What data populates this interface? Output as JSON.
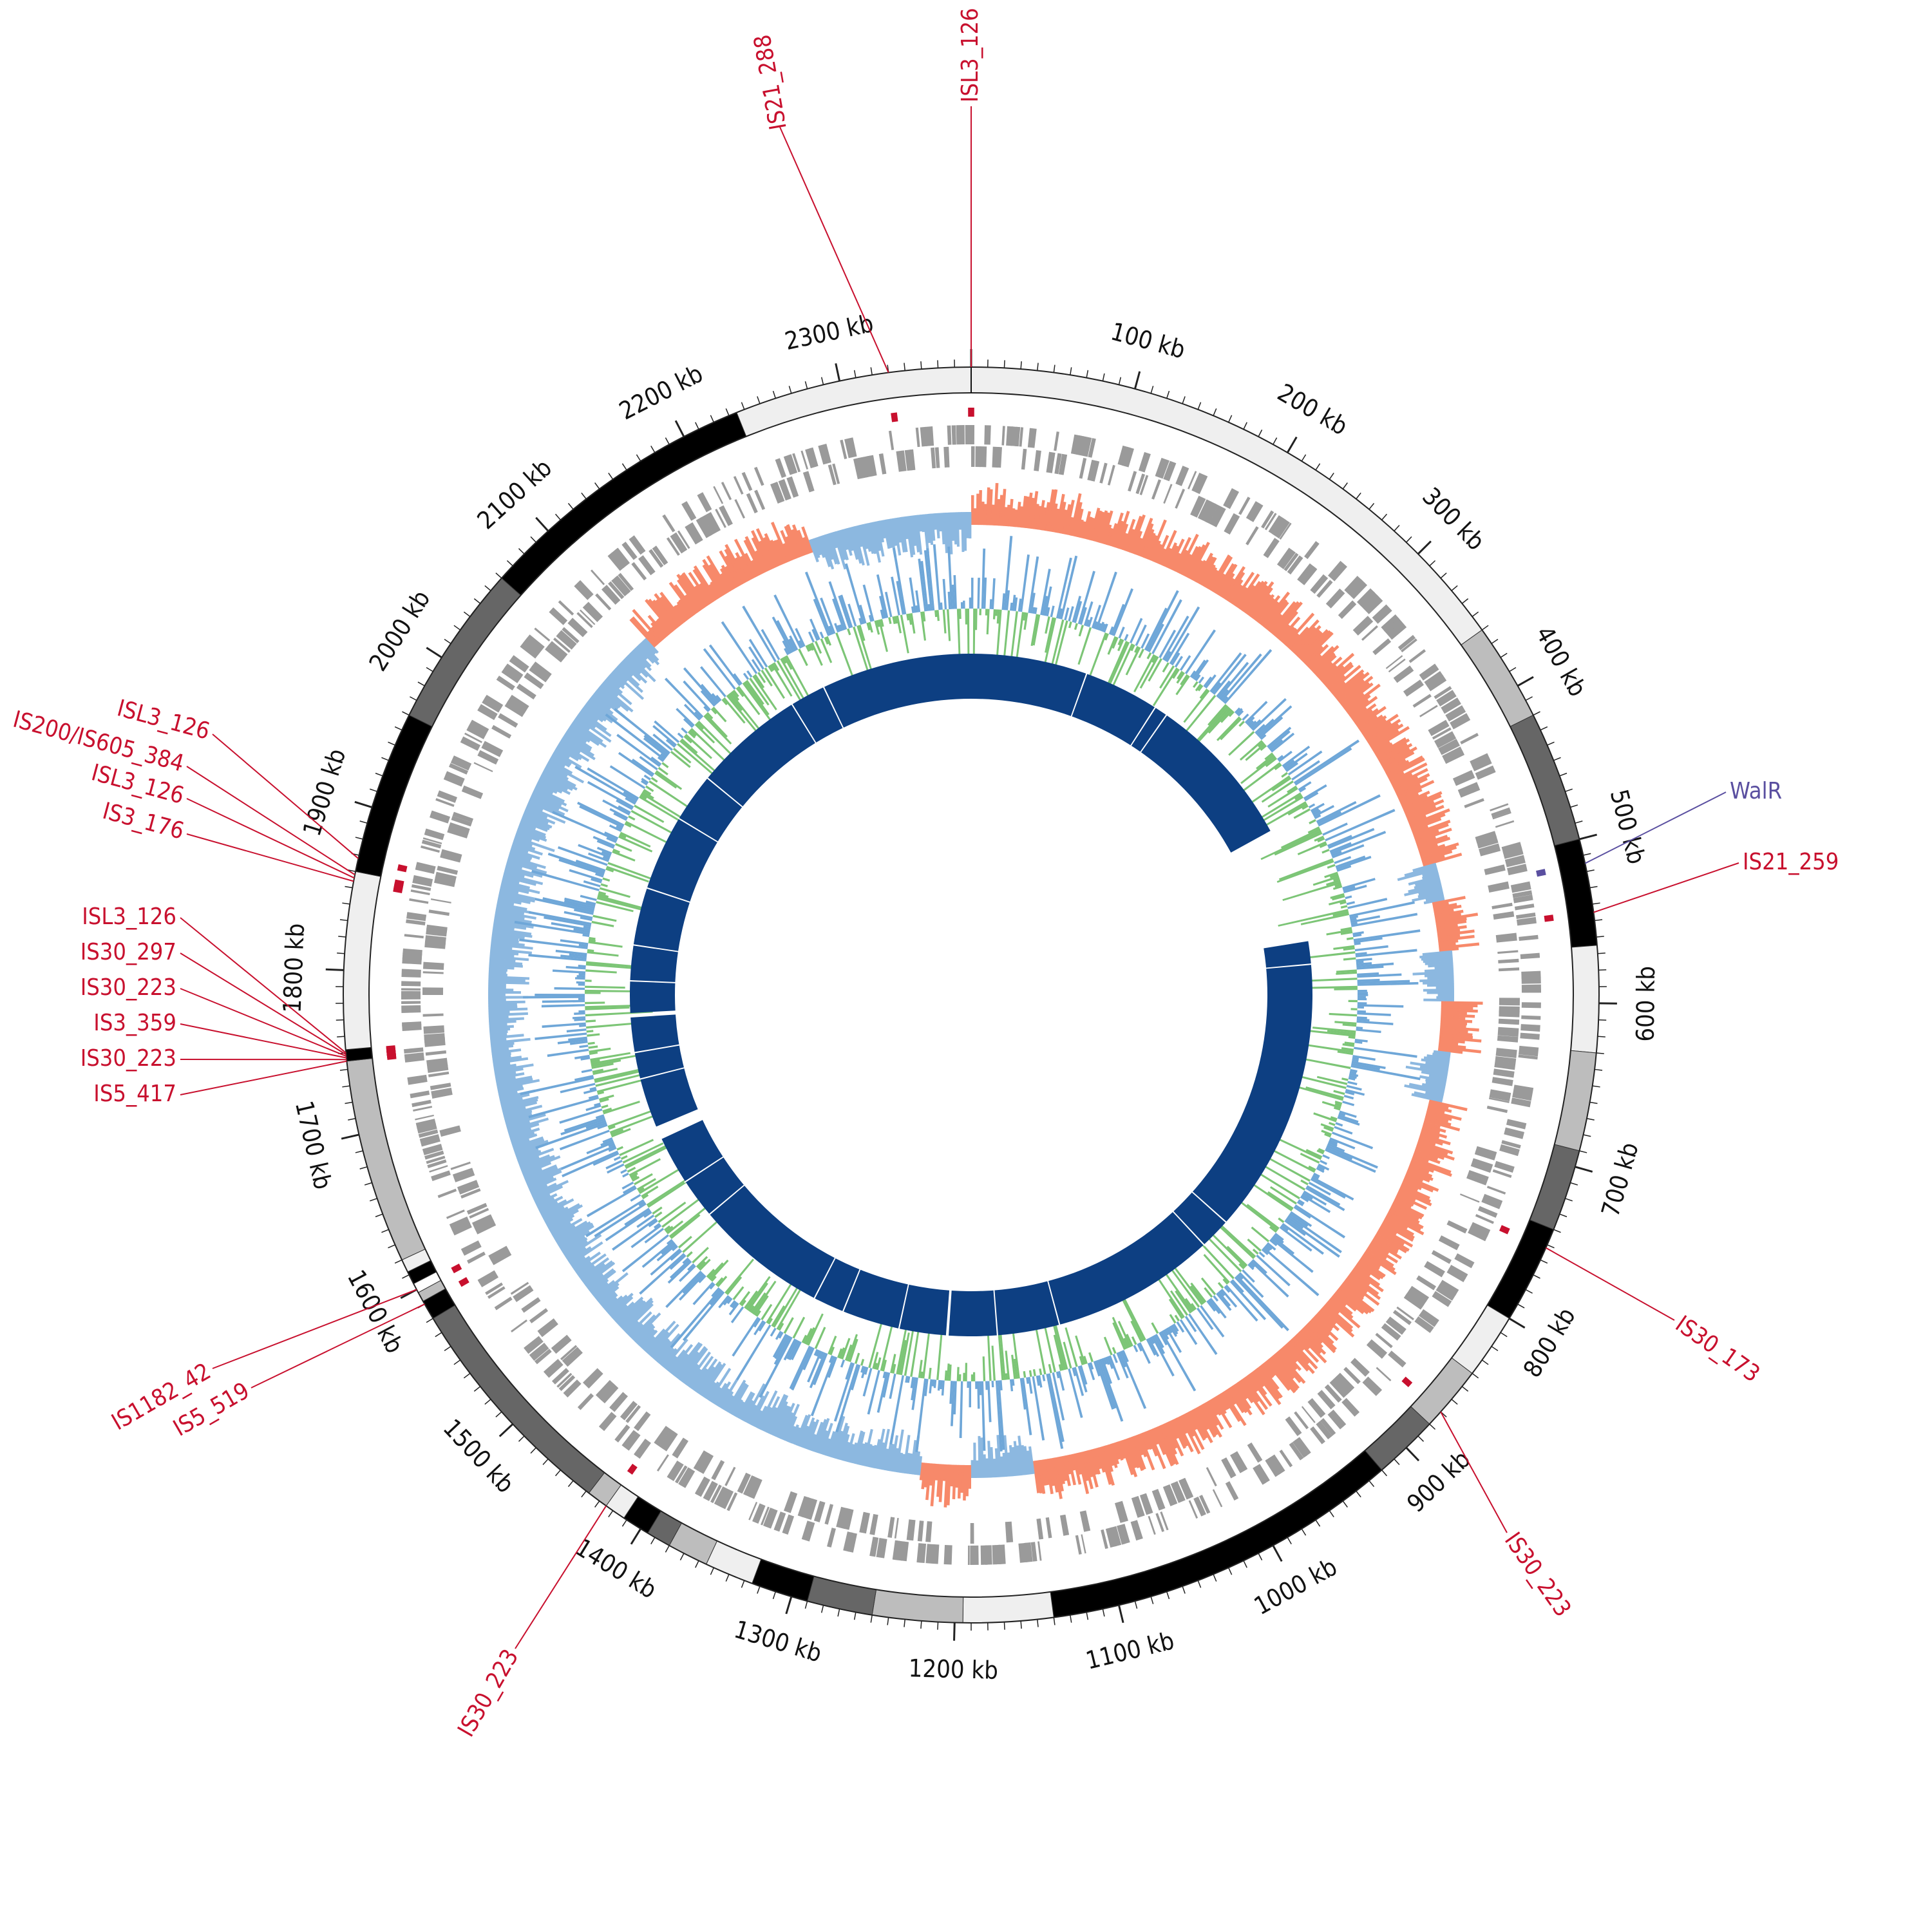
{
  "genome": {
    "length_kb": 2380,
    "tick_labels": [
      "100 kb",
      "200 kb",
      "300 kb",
      "400 kb",
      "500 kb",
      "600 kb",
      "700 kb",
      "800 kb",
      "900 kb",
      "1000 kb",
      "1100 kb",
      "1200 kb",
      "1300 kb",
      "1400 kb",
      "1500 kb",
      "1600 kb",
      "1700 kb",
      "1800 kb",
      "1900 kb",
      "2000 kb",
      "2100 kb",
      "2200 kb",
      "2300 kb"
    ],
    "tick_values_kb": [
      100,
      200,
      300,
      400,
      500,
      600,
      700,
      800,
      900,
      1000,
      1100,
      1200,
      1300,
      1400,
      1500,
      1600,
      1700,
      1800,
      1900,
      2000,
      2100,
      2200,
      2300
    ]
  },
  "annotations": [
    {
      "label": "ISL3_126",
      "kb": 0,
      "color": "#c8102e"
    },
    {
      "label": "IS21_288",
      "kb": 2330,
      "color": "#c8102e"
    },
    {
      "label": "WalR",
      "kb": 515,
      "color": "#5a4fa0"
    },
    {
      "label": "IS21_259",
      "kb": 545,
      "color": "#c8102e"
    },
    {
      "label": "IS30_173",
      "kb": 752,
      "color": "#c8102e"
    },
    {
      "label": "IS30_223",
      "kb": 870,
      "color": "#c8102e"
    },
    {
      "label": "IS30_223",
      "kb": 1425,
      "color": "#c8102e"
    },
    {
      "label": "IS1182_42",
      "kb": 1600,
      "color": "#c8102e"
    },
    {
      "label": "IS5_519",
      "kb": 1590,
      "color": "#c8102e"
    },
    {
      "label": "ISL3_126",
      "kb": 1868,
      "color": "#c8102e"
    },
    {
      "label": "IS200/IS605_384",
      "kb": 1858,
      "color": "#c8102e"
    },
    {
      "label": "ISL3_126",
      "kb": 1856,
      "color": "#c8102e"
    },
    {
      "label": "IS3_176",
      "kb": 1854,
      "color": "#c8102e"
    },
    {
      "label": "ISL3_126",
      "kb": 1750,
      "color": "#c8102e"
    },
    {
      "label": "IS30_297",
      "kb": 1749,
      "color": "#c8102e"
    },
    {
      "label": "IS30_223",
      "kb": 1748,
      "color": "#c8102e"
    },
    {
      "label": "IS3_359",
      "kb": 1747,
      "color": "#c8102e"
    },
    {
      "label": "IS30_223",
      "kb": 1746,
      "color": "#c8102e"
    },
    {
      "label": "IS5_417",
      "kb": 1745,
      "color": "#c8102e"
    }
  ],
  "tracks": {
    "outer_blocks_kb": [
      {
        "start": 0,
        "end": 360,
        "shade": "#efefef"
      },
      {
        "start": 360,
        "end": 420,
        "shade": "#bdbdbd"
      },
      {
        "start": 420,
        "end": 500,
        "shade": "#666666"
      },
      {
        "start": 500,
        "end": 565,
        "shade": "#000000"
      },
      {
        "start": 565,
        "end": 630,
        "shade": "#efefef"
      },
      {
        "start": 630,
        "end": 690,
        "shade": "#bdbdbd"
      },
      {
        "start": 690,
        "end": 740,
        "shade": "#666666"
      },
      {
        "start": 740,
        "end": 800,
        "shade": "#000000"
      },
      {
        "start": 800,
        "end": 840,
        "shade": "#efefef"
      },
      {
        "start": 840,
        "end": 880,
        "shade": "#bdbdbd"
      },
      {
        "start": 880,
        "end": 920,
        "shade": "#666666"
      },
      {
        "start": 920,
        "end": 1140,
        "shade": "#000000"
      },
      {
        "start": 1140,
        "end": 1195,
        "shade": "#efefef"
      },
      {
        "start": 1195,
        "end": 1250,
        "shade": "#bdbdbd"
      },
      {
        "start": 1250,
        "end": 1290,
        "shade": "#666666"
      },
      {
        "start": 1290,
        "end": 1325,
        "shade": "#000000"
      },
      {
        "start": 1325,
        "end": 1355,
        "shade": "#efefef"
      },
      {
        "start": 1355,
        "end": 1380,
        "shade": "#bdbdbd"
      },
      {
        "start": 1380,
        "end": 1395,
        "shade": "#666666"
      },
      {
        "start": 1395,
        "end": 1412,
        "shade": "#000000"
      },
      {
        "start": 1412,
        "end": 1425,
        "shade": "#efefef"
      },
      {
        "start": 1425,
        "end": 1438,
        "shade": "#bdbdbd"
      },
      {
        "start": 1438,
        "end": 1580,
        "shade": "#666666"
      },
      {
        "start": 1580,
        "end": 1592,
        "shade": "#000000"
      },
      {
        "start": 1592,
        "end": 1598,
        "shade": "#bdbdbd"
      },
      {
        "start": 1598,
        "end": 1604,
        "shade": "#ffffff"
      },
      {
        "start": 1604,
        "end": 1612,
        "shade": "#000000"
      },
      {
        "start": 1612,
        "end": 1620,
        "shade": "#efefef"
      },
      {
        "start": 1620,
        "end": 1745,
        "shade": "#bdbdbd"
      },
      {
        "start": 1745,
        "end": 1752,
        "shade": "#000000"
      },
      {
        "start": 1752,
        "end": 1860,
        "shade": "#efefef"
      },
      {
        "start": 1860,
        "end": 1960,
        "shade": "#000000"
      },
      {
        "start": 1960,
        "end": 2060,
        "shade": "#666666"
      },
      {
        "start": 2060,
        "end": 2235,
        "shade": "#000000"
      },
      {
        "start": 2235,
        "end": 2380,
        "shade": "#efefef"
      }
    ],
    "gc_skew_segments_kb": [
      {
        "start": 0,
        "end": 490,
        "sign": "negative"
      },
      {
        "start": 490,
        "end": 700,
        "sign": "mixed"
      },
      {
        "start": 700,
        "end": 1140,
        "sign": "negative"
      },
      {
        "start": 1140,
        "end": 1190,
        "sign": "positive"
      },
      {
        "start": 1190,
        "end": 1230,
        "sign": "negative"
      },
      {
        "start": 1230,
        "end": 1530,
        "sign": "positive"
      },
      {
        "start": 1530,
        "end": 2100,
        "sign": "positive"
      },
      {
        "start": 2100,
        "end": 2250,
        "sign": "negative"
      },
      {
        "start": 2250,
        "end": 2380,
        "sign": "positive"
      }
    ],
    "blast_gaps_kb": [
      {
        "start": 405,
        "end": 535
      },
      {
        "start": 1215,
        "end": 1218
      },
      {
        "start": 1620,
        "end": 1635
      },
      {
        "start": 1760,
        "end": 1765
      }
    ]
  },
  "colors": {
    "annotation_red": "#c8102e",
    "walr_purple": "#5a4fa0",
    "gc_positive": "#8cb8e0",
    "gc_negative": "#f7896a",
    "gc_content_green": "#7cc576",
    "gc_content_blue": "#6fa7d8",
    "blast_ring": "#0d3f82",
    "cds_gray": "#9a9a9a"
  }
}
